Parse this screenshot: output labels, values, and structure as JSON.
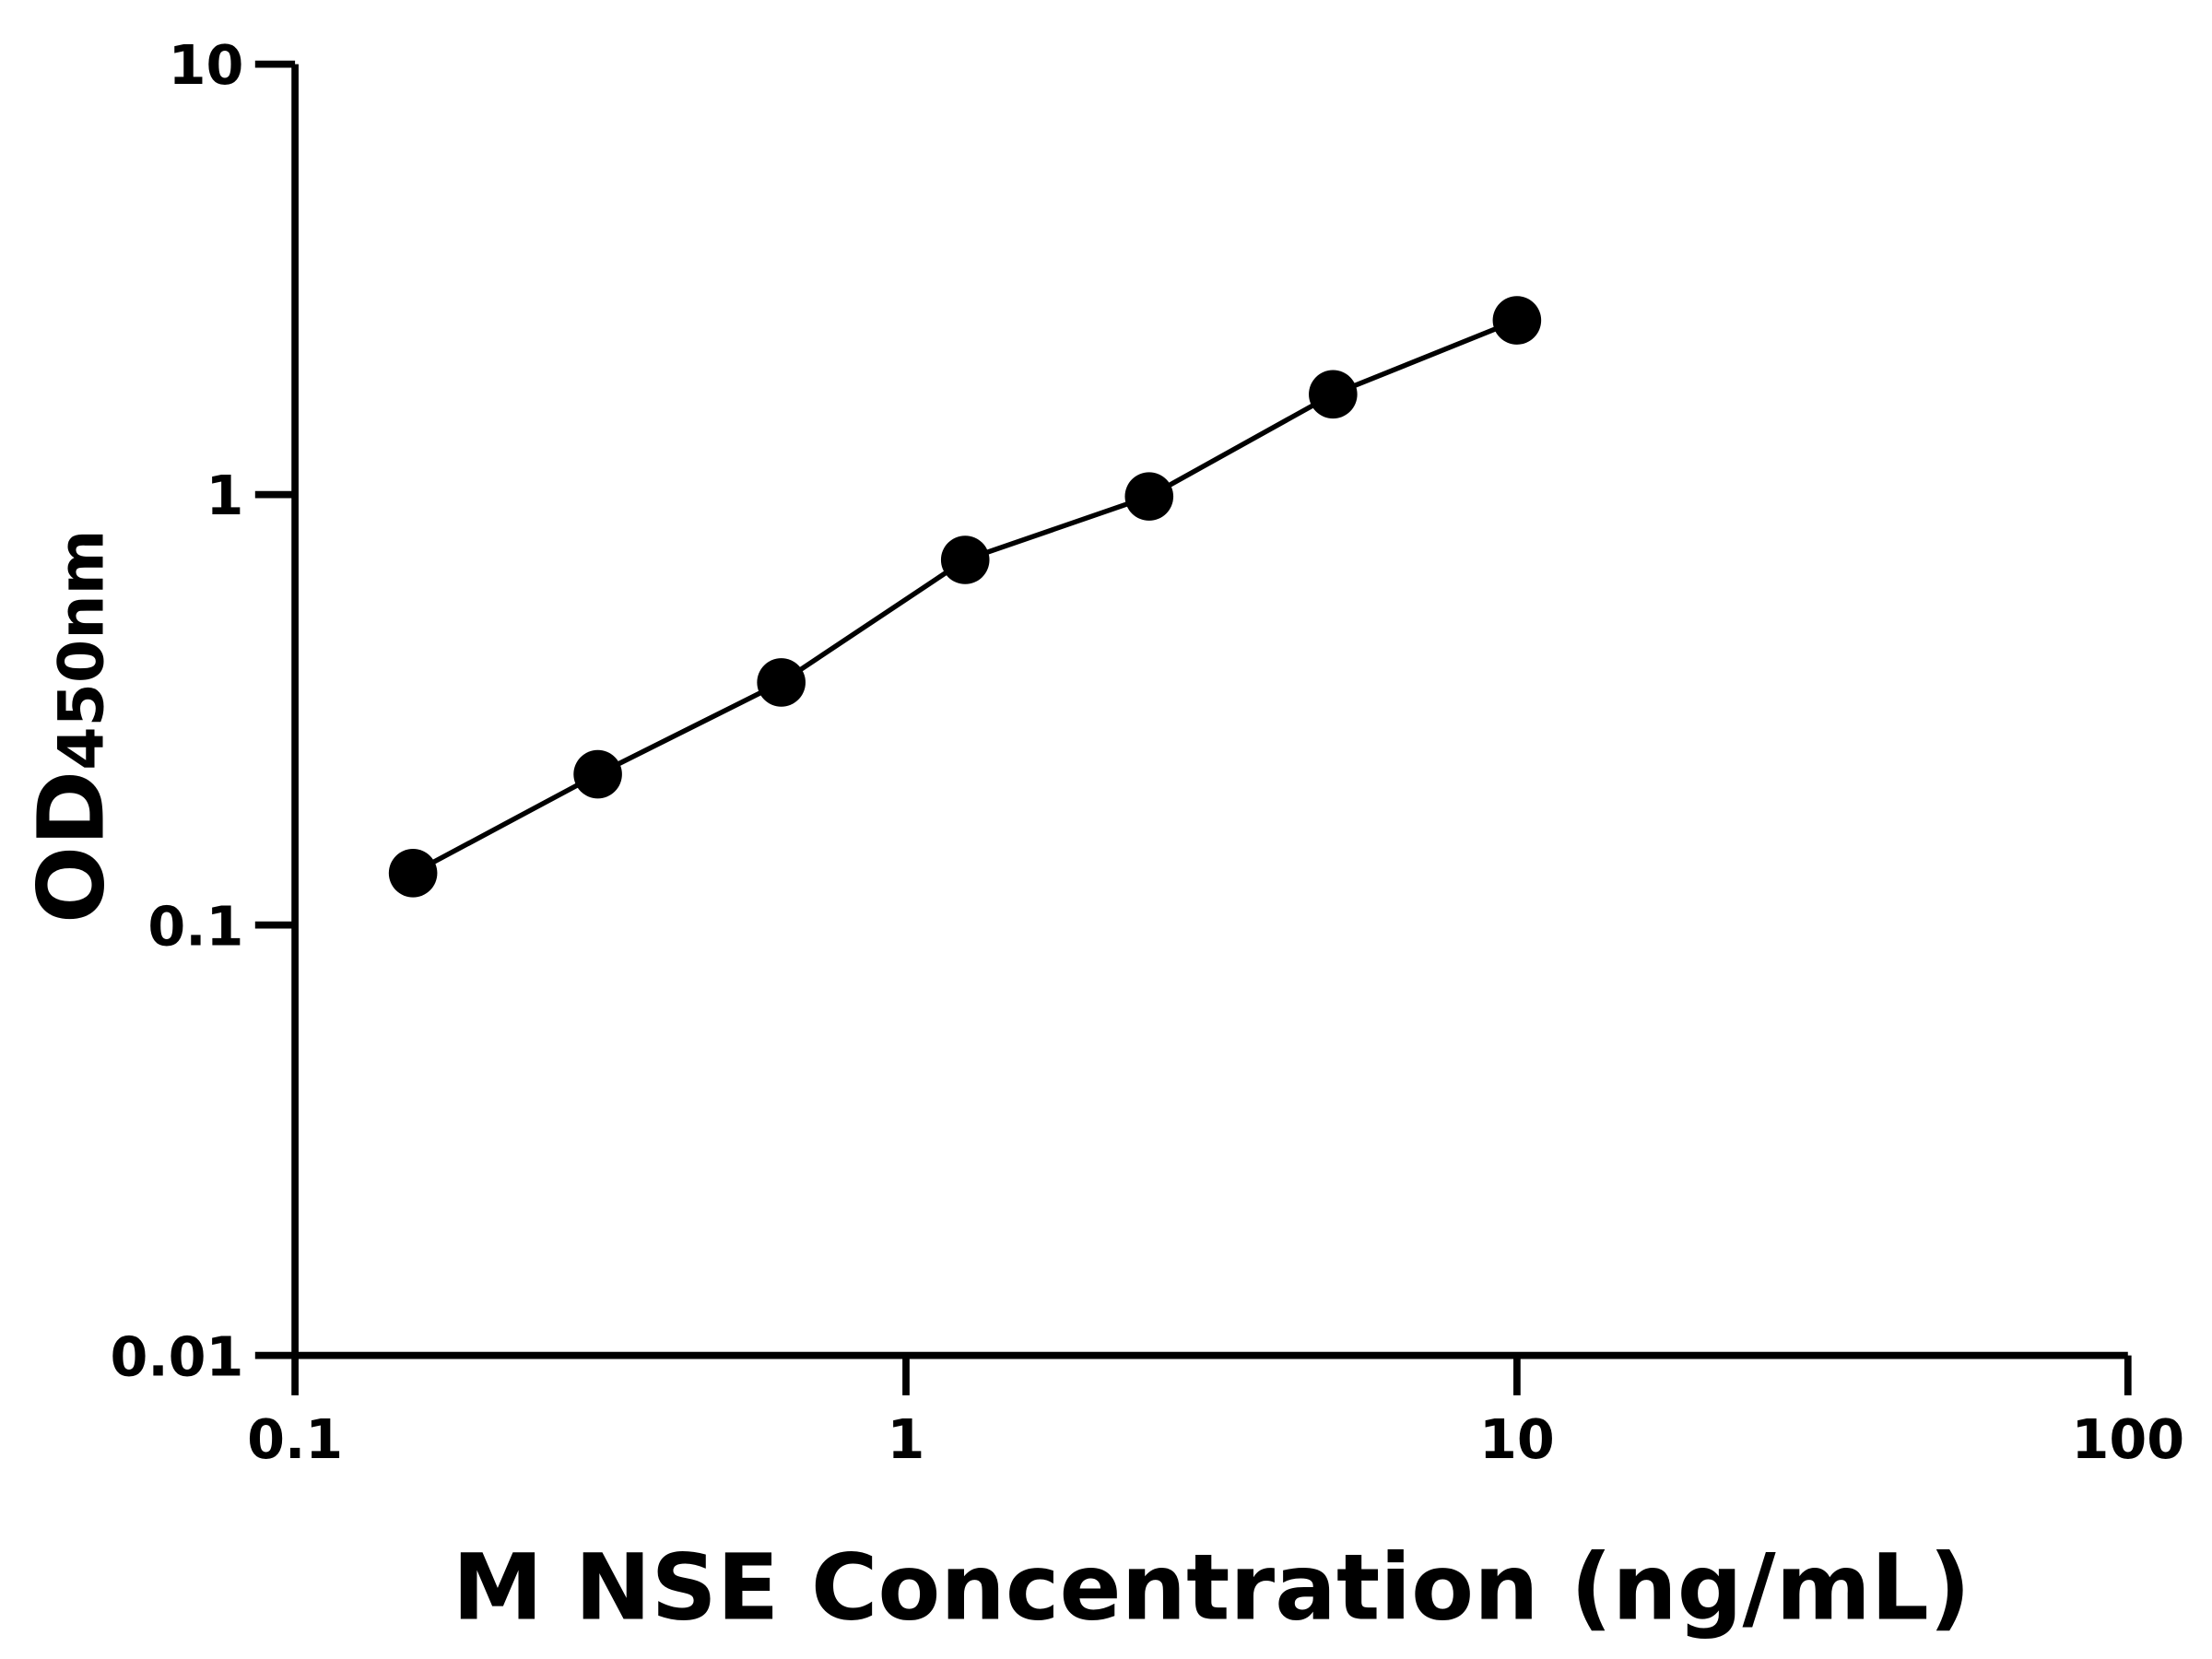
{
  "chart_data": {
    "type": "scatter",
    "title": "",
    "xlabel": "M NSE Concentration (ng/mL)",
    "ylabel_main": "OD",
    "ylabel_sub": "450nm",
    "x_scale": "log",
    "y_scale": "log",
    "xlim": [
      0.1,
      100
    ],
    "ylim": [
      0.01,
      10
    ],
    "x_ticks": [
      0.1,
      1,
      10,
      100
    ],
    "x_tick_labels": [
      "0.1",
      "1",
      "10",
      "100"
    ],
    "y_ticks": [
      0.01,
      0.1,
      1,
      10
    ],
    "y_tick_labels": [
      "0.01",
      "0.1",
      "1",
      "10"
    ],
    "grid": false,
    "legend": "none",
    "series": [
      {
        "x": [
          0.156,
          0.313,
          0.625,
          1.25,
          2.5,
          5,
          10
        ],
        "y": [
          0.132,
          0.224,
          0.366,
          0.705,
          0.99,
          1.71,
          2.54
        ],
        "color": "#000000",
        "marker": "circle",
        "connect_line": true
      }
    ]
  }
}
